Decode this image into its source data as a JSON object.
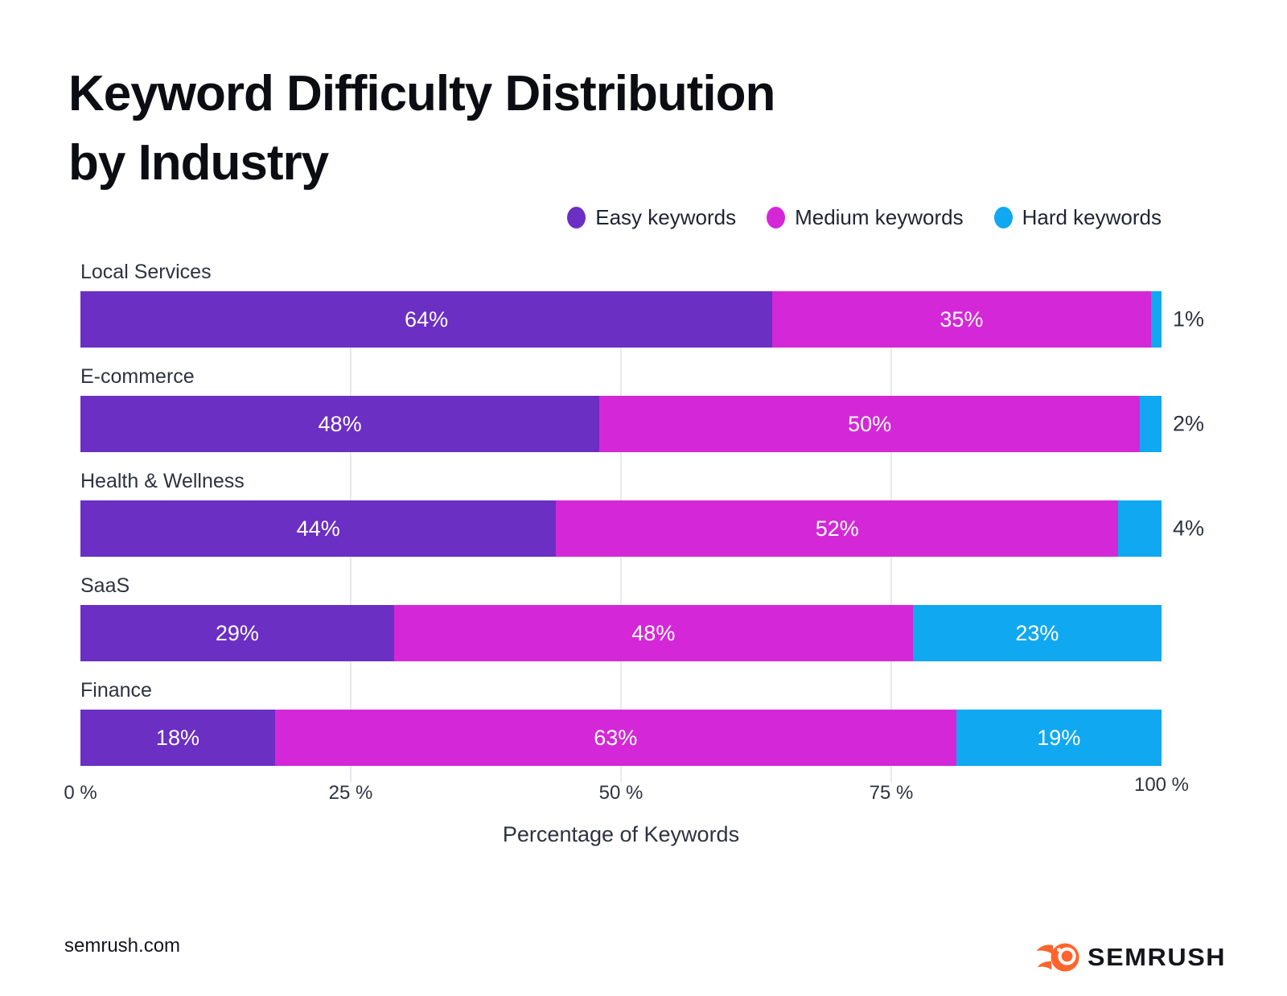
{
  "title": {
    "line1": "Keyword Difficulty Distribution",
    "line2": "by Industry"
  },
  "legend": {
    "items": [
      {
        "label": "Easy keywords",
        "color": "#6B2FC4"
      },
      {
        "label": "Medium keywords",
        "color": "#D428D8"
      },
      {
        "label": "Hard keywords",
        "color": "#10A8F0"
      }
    ]
  },
  "chart_data": {
    "type": "bar",
    "orientation": "horizontal",
    "stacked": true,
    "title": "Keyword Difficulty Distribution by Industry",
    "categories": [
      "Local Services",
      "E-commerce",
      "Health & Wellness",
      "SaaS",
      "Finance"
    ],
    "series": [
      {
        "name": "Easy keywords",
        "color": "#6B2FC4",
        "values": [
          64,
          48,
          44,
          29,
          18
        ]
      },
      {
        "name": "Medium keywords",
        "color": "#D428D8",
        "values": [
          35,
          50,
          52,
          48,
          63
        ]
      },
      {
        "name": "Hard keywords",
        "color": "#10A8F0",
        "values": [
          1,
          2,
          4,
          23,
          19
        ]
      }
    ],
    "value_suffix": "%",
    "xlabel": "Percentage of Keywords",
    "x_ticks": [
      {
        "value": 0,
        "label": "0 %"
      },
      {
        "value": 25,
        "label": "25 %"
      },
      {
        "value": 50,
        "label": "50 %"
      },
      {
        "value": 75,
        "label": "75 %"
      },
      {
        "value": 100,
        "label": "100 %"
      }
    ],
    "xlim": [
      0,
      100
    ],
    "gridline_values": [
      25,
      50,
      75
    ],
    "grid": "vertical",
    "legend_position": "top-right",
    "outside_label_threshold": 6
  },
  "footer": {
    "site": "semrush.com",
    "brand": "SEMRUSH",
    "brand_color": "#FF642D"
  }
}
